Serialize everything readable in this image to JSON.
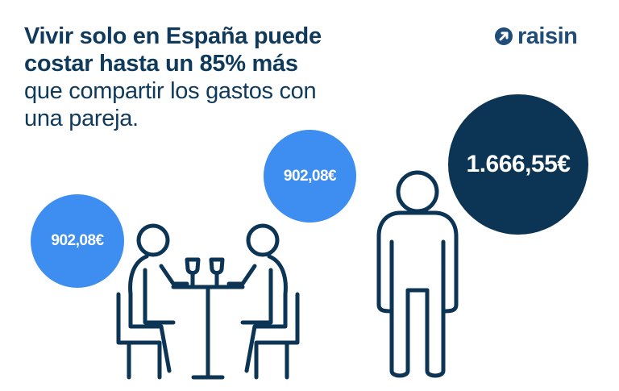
{
  "headline": {
    "bold_line_1": "Vivir solo en España puede",
    "bold_line_2": "costar hasta un 85% más",
    "light_line_1": "que compartir los gastos con",
    "light_line_2": "una pareja."
  },
  "brand": {
    "name": "raisin",
    "icon": "raisin-arrow-icon",
    "color": "#1f4c79"
  },
  "couple": {
    "left_amount": "902,08€",
    "right_amount": "902,08€",
    "bubble_color": "#3d8ef0",
    "icon": "couple-at-table-icon"
  },
  "single": {
    "amount": "1.666,55€",
    "bubble_color": "#0c3454",
    "icon": "standing-person-icon"
  },
  "colors": {
    "text": "#0f3a5c",
    "illustration_stroke": "#0c3454"
  }
}
